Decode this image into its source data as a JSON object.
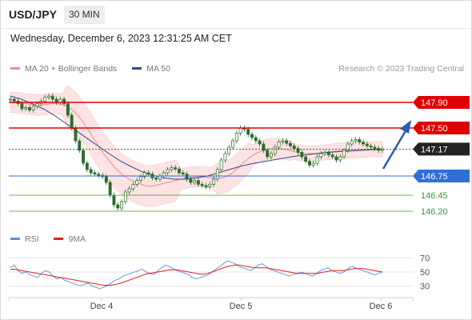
{
  "header": {
    "symbol": "USD/JPY",
    "timeframe": "30 MIN",
    "timestamp": "Wednesday, December 6, 2023 12:31:25 AM CET"
  },
  "legend_main": {
    "ma20": "MA 20 + Bollinger Bands",
    "ma50": "MA 50",
    "credit": "Research © 2023 Trading Central"
  },
  "legend_rsi": {
    "rsi": "RSI",
    "ma9": "9MA"
  },
  "colors": {
    "ma20": "#f08a8a",
    "ma50": "#2f4d8c",
    "bollinger_fill": "#fde3e3",
    "resistance": "#e00000",
    "support_blue": "#2f6fd6",
    "support_green": "#3a9a3a",
    "last_price": "#222222",
    "candle": "#2a6e2a",
    "rsi": "#5b8fd8",
    "rsi_ma": "#e02020",
    "arrow": "#2a5db0"
  },
  "chart_data": [
    {
      "type": "candlestick",
      "x_labels": [
        "Dec 4",
        "Dec 5",
        "Dec 6"
      ],
      "levels": [
        {
          "value": 147.9,
          "label": "147.90",
          "kind": "resistance"
        },
        {
          "value": 147.5,
          "label": "147.50",
          "kind": "resistance"
        },
        {
          "value": 147.17,
          "label": "147.17",
          "kind": "last"
        },
        {
          "value": 146.75,
          "label": "146.75",
          "kind": "support"
        },
        {
          "value": 146.45,
          "label": "146.45",
          "kind": "support-minor"
        },
        {
          "value": 146.2,
          "label": "146.20",
          "kind": "support-minor"
        }
      ],
      "ylim": [
        146.0,
        148.25
      ],
      "close_series": [
        147.95,
        147.92,
        147.88,
        147.8,
        147.82,
        147.78,
        147.84,
        147.88,
        147.92,
        147.98,
        148.0,
        147.95,
        147.9,
        147.95,
        147.88,
        147.7,
        147.5,
        147.3,
        147.15,
        146.95,
        146.85,
        146.8,
        146.78,
        146.76,
        146.74,
        146.65,
        146.45,
        146.3,
        146.25,
        146.35,
        146.5,
        146.55,
        146.62,
        146.68,
        146.74,
        146.8,
        146.78,
        146.72,
        146.7,
        146.75,
        146.8,
        146.85,
        146.88,
        146.86,
        146.8,
        146.78,
        146.7,
        146.65,
        146.68,
        146.62,
        146.6,
        146.58,
        146.62,
        146.7,
        146.85,
        147.0,
        147.1,
        147.2,
        147.3,
        147.42,
        147.5,
        147.48,
        147.4,
        147.35,
        147.3,
        147.25,
        147.15,
        147.05,
        147.1,
        147.2,
        147.28,
        147.3,
        147.26,
        147.22,
        147.18,
        147.12,
        147.05,
        146.98,
        146.92,
        146.95,
        147.05,
        147.1,
        147.12,
        147.08,
        147.05,
        147.0,
        147.05,
        147.15,
        147.25,
        147.3,
        147.32,
        147.28,
        147.25,
        147.22,
        147.2,
        147.18,
        147.15,
        147.17
      ],
      "ma20_series": [
        147.9,
        147.9,
        147.89,
        147.88,
        147.87,
        147.86,
        147.86,
        147.87,
        147.88,
        147.88,
        147.87,
        147.84,
        147.78,
        147.7,
        147.6,
        147.48,
        147.35,
        147.22,
        147.1,
        147.0,
        146.9,
        146.82,
        146.75,
        146.7,
        146.66,
        146.63,
        146.6,
        146.59,
        146.6,
        146.62,
        146.64,
        146.66,
        146.68,
        146.7,
        146.72,
        146.73,
        146.74,
        146.74,
        146.73,
        146.72,
        146.71,
        146.72,
        146.75,
        146.8,
        146.87,
        146.95,
        147.02,
        147.08,
        147.12,
        147.15,
        147.17,
        147.18,
        147.18,
        147.17,
        147.15,
        147.13,
        147.11,
        147.1,
        147.1,
        147.1,
        147.11,
        147.12,
        147.13,
        147.14,
        147.15,
        147.15,
        147.15,
        147.16,
        147.16,
        147.16,
        147.17,
        147.17,
        147.17
      ],
      "ma50_series": [
        148.0,
        147.95,
        147.88,
        147.8,
        147.7,
        147.58,
        147.46,
        147.34,
        147.22,
        147.1,
        146.99,
        146.9,
        146.82,
        146.76,
        146.72,
        146.7,
        146.7,
        146.72,
        146.75,
        146.8,
        146.85,
        146.9,
        146.94,
        146.97,
        147.0,
        147.03,
        147.06,
        147.08,
        147.1,
        147.12,
        147.13,
        147.14,
        147.15,
        147.16,
        147.17
      ]
    },
    {
      "type": "line",
      "name": "RSI panel",
      "y_ticks": [
        "70",
        "50",
        "30"
      ],
      "ylim": [
        20,
        80
      ],
      "rsi_series": [
        56,
        60,
        52,
        48,
        50,
        46,
        44,
        42,
        48,
        52,
        50,
        44,
        40,
        42,
        38,
        36,
        34,
        32,
        30,
        32,
        34,
        30,
        28,
        26,
        28,
        30,
        34,
        38,
        40,
        44,
        46,
        48,
        50,
        52,
        54,
        50,
        48,
        46,
        52,
        56,
        60,
        58,
        55,
        52,
        50,
        48,
        46,
        42,
        40,
        42,
        44,
        46,
        50,
        54,
        58,
        62,
        66,
        64,
        62,
        58,
        56,
        54,
        52,
        56,
        60,
        62,
        58,
        54,
        52,
        50,
        48,
        46,
        44,
        46,
        48,
        50,
        48,
        46,
        44,
        48,
        52,
        54,
        56,
        52,
        50,
        48,
        50,
        54,
        58,
        56,
        54,
        52,
        50,
        48,
        46,
        48,
        50
      ],
      "ma9_series": [
        54,
        54,
        53,
        52,
        51,
        50,
        49,
        48,
        47,
        46,
        45,
        44,
        43,
        42,
        41,
        40,
        39,
        38,
        37,
        36,
        35,
        34,
        33,
        32,
        31,
        31,
        31,
        32,
        33,
        35,
        37,
        39,
        41,
        43,
        45,
        47,
        48,
        49,
        50,
        51,
        52,
        53,
        53,
        53,
        52,
        51,
        50,
        49,
        48,
        47,
        47,
        48,
        50,
        52,
        54,
        56,
        58,
        59,
        60,
        60,
        59,
        58,
        57,
        56,
        56,
        56,
        56,
        55,
        54,
        53,
        52,
        51,
        50,
        49,
        48,
        48,
        48,
        48,
        48,
        48,
        49,
        50,
        51,
        52,
        52,
        52,
        52,
        53,
        54,
        55,
        55,
        55,
        54,
        53,
        52,
        51,
        50
      ]
    }
  ]
}
